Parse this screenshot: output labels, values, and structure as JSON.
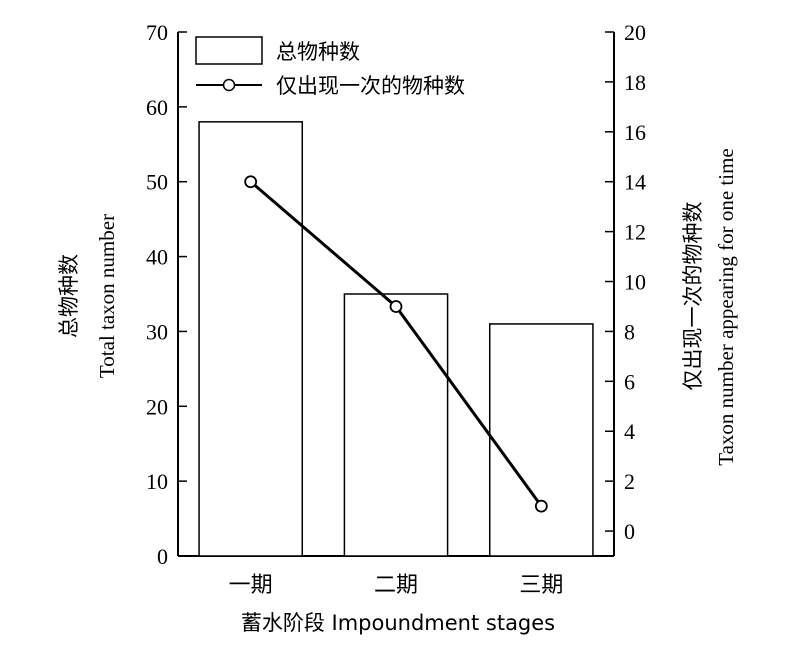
{
  "chart_data": {
    "type": "bar",
    "categories": [
      "一期",
      "二期",
      "三期"
    ],
    "series": [
      {
        "name": "总物种数",
        "kind": "bar",
        "axis": "left",
        "values": [
          58,
          35,
          31
        ]
      },
      {
        "name": "仅出现一次的物种数",
        "kind": "line",
        "axis": "right",
        "values": [
          14,
          9,
          1
        ]
      }
    ],
    "left_axis": {
      "label_cn": "总物种数",
      "label_en": "Total taxon number",
      "ylim": [
        0,
        70
      ],
      "ticks": [
        0,
        10,
        20,
        30,
        40,
        50,
        60,
        70
      ]
    },
    "right_axis": {
      "label_cn": "仅出现一次的物种数",
      "label_en": "Taxon number appearing for one time",
      "ylim": [
        -1,
        20
      ],
      "ticks": [
        0,
        2,
        4,
        6,
        8,
        10,
        12,
        14,
        16,
        18,
        20
      ]
    },
    "xlabel": "蓄水阶段 Impoundment stages",
    "grid": false,
    "legend_position": "top-left",
    "colors": {
      "bar_fill": "#ffffff",
      "bar_stroke": "#000000",
      "line": "#000000",
      "marker_fill": "#ffffff"
    }
  }
}
